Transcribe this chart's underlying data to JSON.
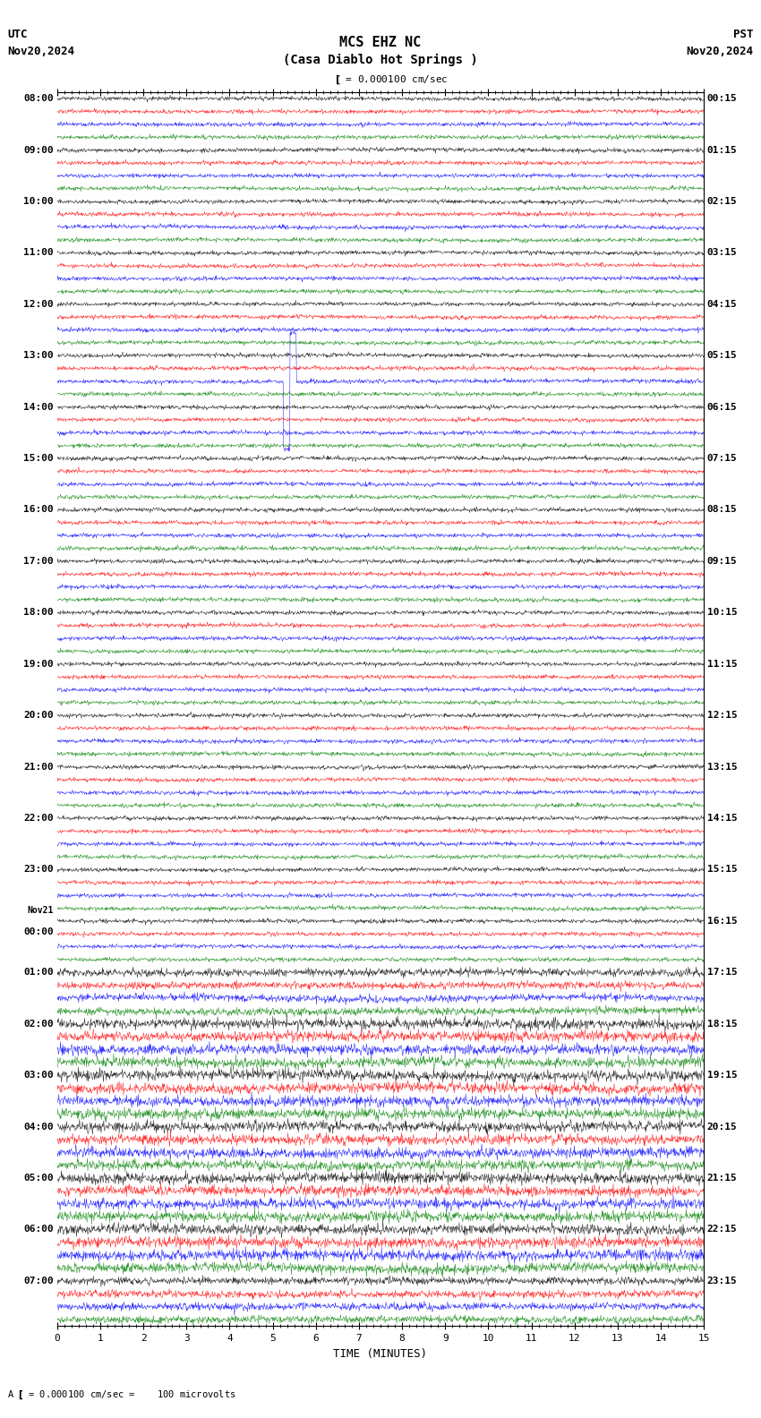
{
  "title_line1": "MCS EHZ NC",
  "title_line2": "(Casa Diablo Hot Springs )",
  "scale_label": "= 0.000100 cm/sec",
  "left_label": "UTC",
  "right_label": "PST",
  "left_date": "Nov20,2024",
  "right_date": "Nov20,2024",
  "xlabel": "TIME (MINUTES)",
  "bottom_note": "= 0.000100 cm/sec =    100 microvolts",
  "xmin": 0,
  "xmax": 15,
  "bg_color": "#ffffff",
  "trace_colors": [
    "black",
    "red",
    "blue",
    "green"
  ],
  "utc_labels": [
    "08:00",
    "09:00",
    "10:00",
    "11:00",
    "12:00",
    "13:00",
    "14:00",
    "15:00",
    "16:00",
    "17:00",
    "18:00",
    "19:00",
    "20:00",
    "21:00",
    "22:00",
    "23:00",
    "Nov21\n00:00",
    "01:00",
    "02:00",
    "03:00",
    "04:00",
    "05:00",
    "06:00",
    "07:00"
  ],
  "pst_labels": [
    "00:15",
    "01:15",
    "02:15",
    "03:15",
    "04:15",
    "05:15",
    "06:15",
    "07:15",
    "08:15",
    "09:15",
    "10:15",
    "11:15",
    "12:15",
    "13:15",
    "14:15",
    "15:15",
    "16:15",
    "17:15",
    "18:15",
    "19:15",
    "20:15",
    "21:15",
    "22:15",
    "23:15"
  ],
  "num_hours": 24,
  "traces_per_hour": 4,
  "noise_seed": 42,
  "amplitude_scale": 0.08,
  "special_hour": 5,
  "special_color": "blue",
  "special_amplitude": 1.5
}
